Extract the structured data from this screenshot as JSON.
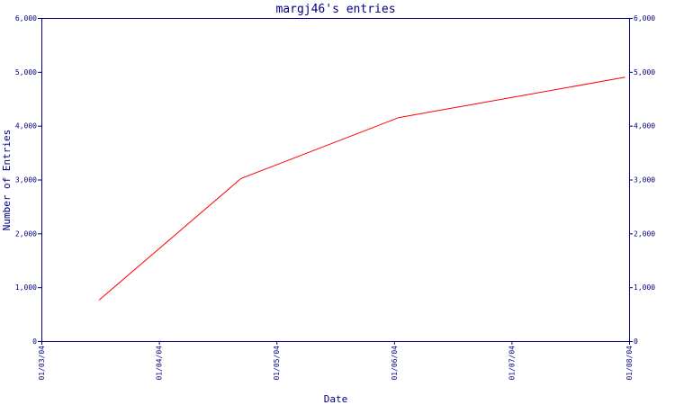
{
  "chart_data": {
    "type": "line",
    "title": "margj46's entries",
    "xlabel": "Date",
    "ylabel": "Number of Entries",
    "x_ticks": [
      "01/03/04",
      "01/04/04",
      "01/05/04",
      "01/06/04",
      "01/07/04",
      "01/08/04"
    ],
    "y_ticks": [
      "0",
      "1,000",
      "2,000",
      "3,000",
      "4,000",
      "5,000",
      "6,000"
    ],
    "ylim": [
      0,
      6000
    ],
    "xlim": [
      "2004-03-01",
      "2004-08-01"
    ],
    "grid": false,
    "series": [
      {
        "color": "#ff0000",
        "points": [
          {
            "x": "2004-03-16",
            "y": 760
          },
          {
            "x": "2004-04-22",
            "y": 3020
          },
          {
            "x": "2004-06-02",
            "y": 4150
          },
          {
            "x": "2004-07-01",
            "y": 4520
          },
          {
            "x": "2004-07-31",
            "y": 4900
          }
        ]
      }
    ],
    "axis_color": "#000080",
    "background": "#ffffff"
  }
}
